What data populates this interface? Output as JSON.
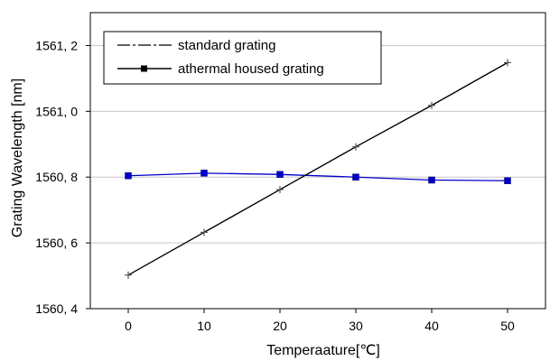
{
  "chart_data": {
    "type": "line",
    "xlabel": "Temperaature[℃]",
    "ylabel": "Grating Wavelength [nm]",
    "xlim": [
      -5,
      55
    ],
    "ylim": [
      1560.4,
      1561.3
    ],
    "x_ticks": [
      0,
      10,
      20,
      30,
      40,
      50
    ],
    "y_ticks": [
      1560.4,
      1560.6,
      1560.8,
      1561.0,
      1561.2
    ],
    "x_tick_labels": [
      "0",
      "10",
      "20",
      "30",
      "40",
      "50"
    ],
    "y_tick_labels": [
      "1560, 4",
      "1560, 6",
      "1560, 8",
      "1561, 0",
      "1561, 2"
    ],
    "grid": true,
    "legend_position": "top-left",
    "series": [
      {
        "name": "standard grating",
        "color": "#000000",
        "marker": "plus",
        "x": [
          0,
          10,
          20,
          30,
          40,
          50
        ],
        "y": [
          1560.502,
          1560.632,
          1560.762,
          1560.892,
          1561.018,
          1561.148
        ]
      },
      {
        "name": "athermal housed grating",
        "color": "#0000cc",
        "marker": "square",
        "x": [
          0,
          10,
          20,
          30,
          40,
          50
        ],
        "y": [
          1560.804,
          1560.812,
          1560.808,
          1560.8,
          1560.791,
          1560.789
        ]
      }
    ]
  }
}
